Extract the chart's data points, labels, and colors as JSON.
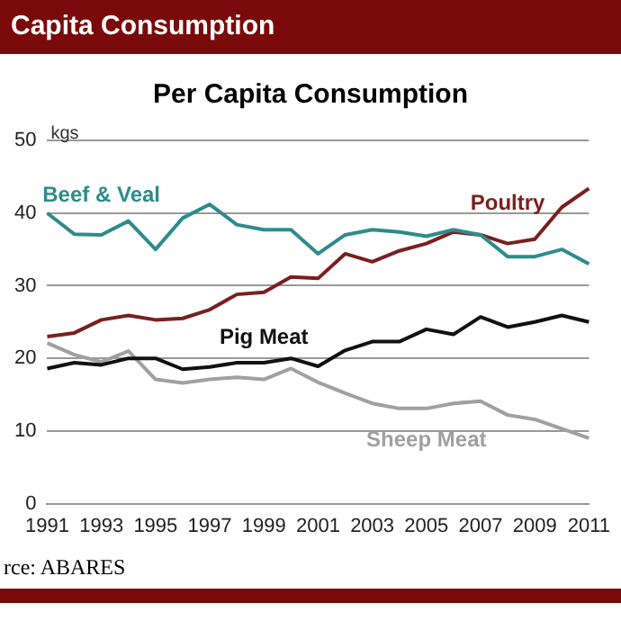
{
  "chart_data": {
    "type": "line",
    "title": "Capita Consumption",
    "subtitle": "Per Capita Consumption",
    "ylabel": "kgs",
    "categories": [
      "1991",
      null,
      "1993",
      null,
      "1995",
      null,
      "1997",
      null,
      "1999",
      null,
      "2001",
      null,
      "2003",
      null,
      "2005",
      null,
      "2007",
      null,
      "2009",
      null,
      "2011"
    ],
    "series": [
      {
        "name": "Beef & Veal",
        "color": "#2e8b8b",
        "values": [
          40,
          37.1,
          37,
          38.9,
          35,
          39.3,
          41.2,
          38.4,
          37.7,
          37.7,
          34.4,
          37,
          37.7,
          37.4,
          36.8,
          37.7,
          37,
          34,
          34,
          35,
          33
        ]
      },
      {
        "name": "Poultry",
        "color": "#7a1f1f",
        "values": [
          23,
          23.5,
          25.3,
          25.9,
          25.3,
          25.5,
          26.7,
          28.8,
          29.1,
          31.2,
          31,
          34.4,
          33.3,
          34.8,
          35.8,
          37.4,
          37,
          35.8,
          36.4,
          40.8,
          43.4
        ]
      },
      {
        "name": "Pig Meat",
        "color": "#111111",
        "values": [
          18.6,
          19.4,
          19.1,
          20,
          20,
          18.5,
          18.8,
          19.4,
          19.4,
          20,
          18.9,
          21.1,
          22.3,
          22.3,
          24,
          23.3,
          25.7,
          24.3,
          25,
          25.9,
          25
        ]
      },
      {
        "name": "Sheep Meat",
        "color": "#a0a0a0",
        "values": [
          22.1,
          20.5,
          19.5,
          21,
          17.1,
          16.6,
          17.1,
          17.4,
          17.1,
          18.6,
          16.7,
          15.2,
          13.8,
          13.1,
          13.1,
          13.8,
          14.1,
          12.2,
          11.6,
          10.3,
          9
        ]
      }
    ],
    "ylim": [
      0,
      50
    ],
    "yticks": [
      0,
      10,
      20,
      30,
      40,
      50
    ],
    "grid": "y",
    "legend": false,
    "marker": "none",
    "line_style": "solid",
    "annotations": [
      "rce: ABARES"
    ]
  }
}
